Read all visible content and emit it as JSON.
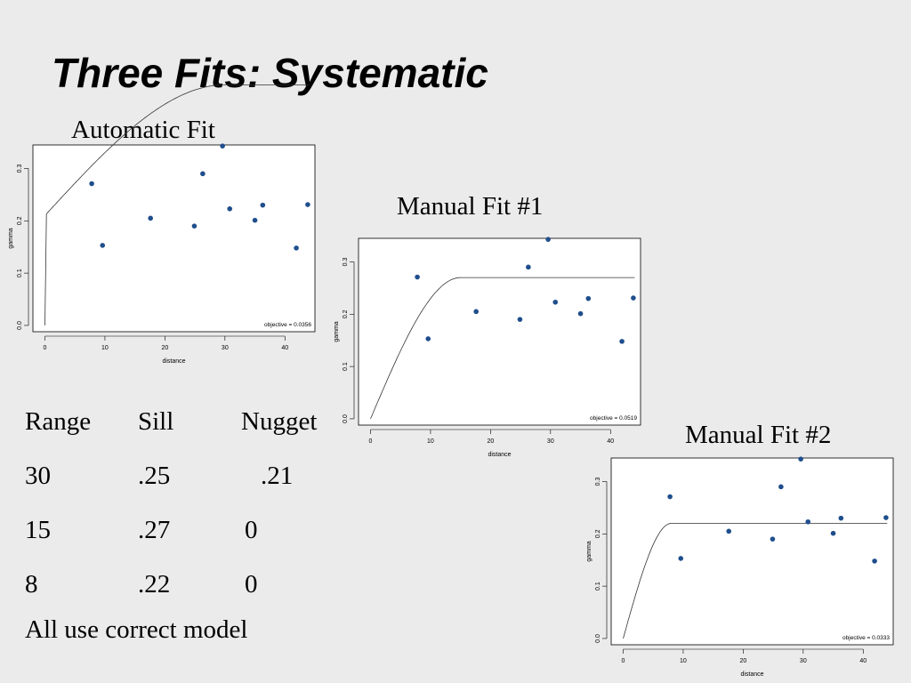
{
  "slide": {
    "title": "Three Fits: Systematic",
    "footer_note": "All use correct model"
  },
  "table": {
    "headers": [
      "Range",
      "Sill",
      "Nugget"
    ],
    "rows": [
      [
        "30",
        ".25",
        ".21"
      ],
      [
        "15",
        ".27",
        "0"
      ],
      [
        "8",
        ".22",
        "0"
      ]
    ]
  },
  "chart_data": [
    {
      "type": "scatter",
      "caption": "Automatic Fit",
      "xlabel": "distance",
      "ylabel": "gamma",
      "xlim": [
        -2,
        45
      ],
      "ylim": [
        -0.012,
        0.345
      ],
      "xticks": [
        0,
        10,
        20,
        30,
        40
      ],
      "yticks": [
        0.0,
        0.1,
        0.2,
        0.3
      ],
      "annotation": "objective = 0.0356",
      "point_color": "#1f4e8c",
      "points": [
        {
          "x": 7.8,
          "y": 0.271
        },
        {
          "x": 9.6,
          "y": 0.153
        },
        {
          "x": 17.6,
          "y": 0.205
        },
        {
          "x": 24.9,
          "y": 0.19
        },
        {
          "x": 26.3,
          "y": 0.29
        },
        {
          "x": 29.6,
          "y": 0.343
        },
        {
          "x": 30.8,
          "y": 0.223
        },
        {
          "x": 35.0,
          "y": 0.201
        },
        {
          "x": 36.3,
          "y": 0.23
        },
        {
          "x": 41.9,
          "y": 0.148
        },
        {
          "x": 43.8,
          "y": 0.231
        }
      ],
      "model": {
        "nugget": 0.21,
        "sill": 0.25,
        "range": 30
      }
    },
    {
      "type": "scatter",
      "caption": "Manual Fit #1",
      "xlabel": "distance",
      "ylabel": "gamma",
      "xlim": [
        -2,
        45
      ],
      "ylim": [
        -0.012,
        0.345
      ],
      "xticks": [
        0,
        10,
        20,
        30,
        40
      ],
      "yticks": [
        0.0,
        0.1,
        0.2,
        0.3
      ],
      "annotation": "objective = 0.0519",
      "point_color": "#1f4e8c",
      "points": [
        {
          "x": 7.8,
          "y": 0.271
        },
        {
          "x": 9.6,
          "y": 0.153
        },
        {
          "x": 17.6,
          "y": 0.205
        },
        {
          "x": 24.9,
          "y": 0.19
        },
        {
          "x": 26.3,
          "y": 0.29
        },
        {
          "x": 29.6,
          "y": 0.343
        },
        {
          "x": 30.8,
          "y": 0.223
        },
        {
          "x": 35.0,
          "y": 0.201
        },
        {
          "x": 36.3,
          "y": 0.23
        },
        {
          "x": 41.9,
          "y": 0.148
        },
        {
          "x": 43.8,
          "y": 0.231
        }
      ],
      "model": {
        "nugget": 0,
        "sill": 0.27,
        "range": 15
      }
    },
    {
      "type": "scatter",
      "caption": "Manual Fit #2",
      "xlabel": "distance",
      "ylabel": "gamma",
      "xlim": [
        -2,
        45
      ],
      "ylim": [
        -0.012,
        0.345
      ],
      "xticks": [
        0,
        10,
        20,
        30,
        40
      ],
      "yticks": [
        0.0,
        0.1,
        0.2,
        0.3
      ],
      "annotation": "objective = 0.0333",
      "point_color": "#1f4e8c",
      "points": [
        {
          "x": 7.8,
          "y": 0.271
        },
        {
          "x": 9.6,
          "y": 0.153
        },
        {
          "x": 17.6,
          "y": 0.205
        },
        {
          "x": 24.9,
          "y": 0.19
        },
        {
          "x": 26.3,
          "y": 0.29
        },
        {
          "x": 29.6,
          "y": 0.343
        },
        {
          "x": 30.8,
          "y": 0.223
        },
        {
          "x": 35.0,
          "y": 0.201
        },
        {
          "x": 36.3,
          "y": 0.23
        },
        {
          "x": 41.9,
          "y": 0.148
        },
        {
          "x": 43.8,
          "y": 0.231
        }
      ],
      "model": {
        "nugget": 0,
        "sill": 0.22,
        "range": 8
      }
    }
  ]
}
